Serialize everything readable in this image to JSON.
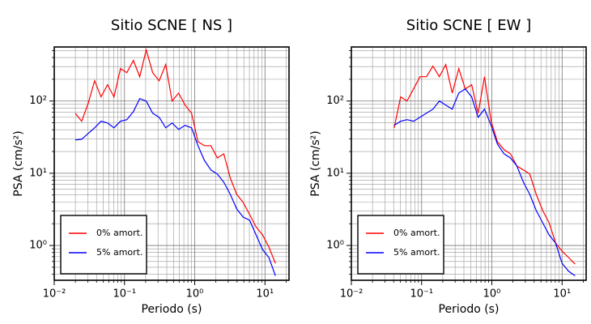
{
  "chart_data": [
    {
      "type": "line",
      "title": "Sitio SCNE [ NS ]",
      "x_label": "Periodo (s)",
      "y_label": "PSA (cm/s²)",
      "log_x": true,
      "log_y": true,
      "grid": true,
      "legend": "lower left",
      "xlim": [
        0.01,
        22
      ],
      "ylim": [
        0.33,
        560
      ],
      "xticks": [
        {
          "value": 0.01,
          "label": "10⁻²"
        },
        {
          "value": 0.1,
          "label": "10⁻¹"
        },
        {
          "value": 1,
          "label": "10⁰"
        },
        {
          "value": 10,
          "label": "10¹"
        }
      ],
      "yticks": [
        {
          "value": 1,
          "label": "10⁰"
        },
        {
          "value": 10,
          "label": "10¹"
        },
        {
          "value": 100,
          "label": "10²"
        }
      ],
      "xminorticks": [
        0.02,
        0.03,
        0.04,
        0.05,
        0.06,
        0.07,
        0.08,
        0.09,
        0.2,
        0.3,
        0.4,
        0.5,
        0.6,
        0.7,
        0.8,
        0.9,
        2,
        3,
        4,
        5,
        6,
        7,
        8,
        9,
        20
      ],
      "yminorticks": [
        0.4,
        0.5,
        0.6,
        0.7,
        0.8,
        0.9,
        2,
        3,
        4,
        5,
        6,
        7,
        8,
        9,
        20,
        30,
        40,
        50,
        60,
        70,
        80,
        90,
        200,
        300,
        400,
        500
      ],
      "x": [
        0.0199,
        0.0246,
        0.0304,
        0.0376,
        0.0464,
        0.0574,
        0.0709,
        0.0877,
        0.108,
        0.134,
        0.165,
        0.204,
        0.252,
        0.312,
        0.386,
        0.477,
        0.589,
        0.728,
        0.9,
        1.11,
        1.37,
        1.7,
        2.1,
        2.59,
        3.21,
        3.96,
        4.9,
        6.05,
        7.48,
        9.24,
        11.4,
        14.1
      ],
      "series": [
        {
          "name": "0% amort.",
          "color": "#ff0000",
          "values": [
            67.8,
            52.4,
            92.5,
            191,
            114,
            168,
            114,
            281,
            247,
            365,
            217,
            510,
            247,
            191,
            320,
            100,
            129,
            87.9,
            67.8,
            27.4,
            24.1,
            24.1,
            16.3,
            18.6,
            8.57,
            5.1,
            3.94,
            2.67,
            1.81,
            1.4,
            0.95,
            0.566
          ]
        },
        {
          "name": "5% amort.",
          "color": "#0000ff",
          "values": [
            28.9,
            29.6,
            35.5,
            42.6,
            52.4,
            49.7,
            42.6,
            52.4,
            55.2,
            71.4,
            108,
            100,
            67.8,
            59.6,
            42.6,
            49.7,
            40.4,
            46.0,
            42.6,
            24.1,
            15.1,
            11.1,
            9.75,
            7.52,
            5.1,
            3.2,
            2.47,
            2.23,
            1.4,
            0.88,
            0.68,
            0.38
          ]
        }
      ]
    },
    {
      "type": "line",
      "title": "Sitio SCNE [ EW ]",
      "x_label": "Periodo (s)",
      "y_label": "PSA (cm/s²)",
      "log_x": true,
      "log_y": true,
      "grid": true,
      "legend": "lower left",
      "xlim": [
        0.01,
        22
      ],
      "ylim": [
        0.33,
        560
      ],
      "xticks": [
        {
          "value": 0.01,
          "label": "10⁻²"
        },
        {
          "value": 0.1,
          "label": "10⁻¹"
        },
        {
          "value": 1,
          "label": "10⁰"
        },
        {
          "value": 10,
          "label": "10¹"
        }
      ],
      "yticks": [
        {
          "value": 1,
          "label": "10⁰"
        },
        {
          "value": 10,
          "label": "10¹"
        },
        {
          "value": 100,
          "label": "10²"
        }
      ],
      "xminorticks": [
        0.02,
        0.03,
        0.04,
        0.05,
        0.06,
        0.07,
        0.08,
        0.09,
        0.2,
        0.3,
        0.4,
        0.5,
        0.6,
        0.7,
        0.8,
        0.9,
        2,
        3,
        4,
        5,
        6,
        7,
        8,
        9,
        20
      ],
      "yminorticks": [
        0.4,
        0.5,
        0.6,
        0.7,
        0.8,
        0.9,
        2,
        3,
        4,
        5,
        6,
        7,
        8,
        9,
        20,
        30,
        40,
        50,
        60,
        70,
        80,
        90,
        200,
        300,
        400,
        500
      ],
      "x": [
        0.0407,
        0.0503,
        0.0621,
        0.0767,
        0.0948,
        0.117,
        0.145,
        0.179,
        0.221,
        0.273,
        0.338,
        0.418,
        0.516,
        0.638,
        0.788,
        0.975,
        1.2,
        1.49,
        1.84,
        2.27,
        2.81,
        3.47,
        4.29,
        5.3,
        6.55,
        8.09,
        10.0,
        12.4,
        15.3
      ],
      "series": [
        {
          "name": "0% amort.",
          "color": "#ff0000",
          "values": [
            42.6,
            114,
            100,
            147,
            217,
            217,
            304,
            217,
            320,
            129,
            281,
            147,
            168,
            67.8,
            217,
            52.4,
            27.4,
            21.2,
            18.6,
            12.6,
            11.1,
            9.75,
            5.1,
            3.04,
            2.06,
            1.08,
            0.834,
            0.68,
            0.552
          ]
        },
        {
          "name": "5% amort.",
          "color": "#0000ff",
          "values": [
            46.0,
            52.4,
            55.2,
            52.4,
            59.6,
            67.8,
            77.2,
            100,
            87.9,
            77.2,
            129,
            147,
            114,
            59.6,
            77.2,
            46.0,
            25.4,
            18.6,
            16.3,
            12.6,
            7.52,
            5.1,
            3.04,
            2.06,
            1.4,
            1.08,
            0.566,
            0.44,
            0.38
          ]
        }
      ]
    }
  ]
}
